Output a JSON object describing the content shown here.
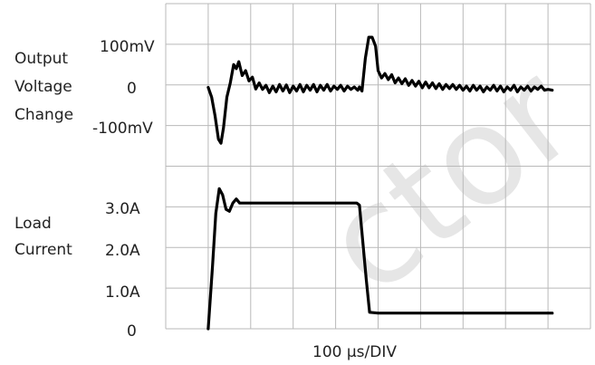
{
  "chart_data": {
    "type": "line",
    "time_division": "100 µs/DIV",
    "watermark": "ctor",
    "panels": [
      {
        "name": "Output Voltage Change",
        "label_lines": [
          "Output",
          "Voltage",
          "Change"
        ],
        "tick_labels": [
          "100mV",
          "0",
          "-100mV"
        ],
        "tick_values": [
          100,
          0,
          -100
        ],
        "unit": "mV",
        "points": [
          [
            1.0,
            -1
          ],
          [
            1.08,
            -25
          ],
          [
            1.16,
            -70
          ],
          [
            1.24,
            -128
          ],
          [
            1.3,
            -138
          ],
          [
            1.36,
            -100
          ],
          [
            1.44,
            -25
          ],
          [
            1.52,
            10
          ],
          [
            1.6,
            55
          ],
          [
            1.66,
            45
          ],
          [
            1.72,
            62
          ],
          [
            1.8,
            28
          ],
          [
            1.88,
            40
          ],
          [
            1.96,
            15
          ],
          [
            2.04,
            24
          ],
          [
            2.12,
            -5
          ],
          [
            2.2,
            10
          ],
          [
            2.28,
            -6
          ],
          [
            2.36,
            4
          ],
          [
            2.44,
            -14
          ],
          [
            2.52,
            2
          ],
          [
            2.6,
            -12
          ],
          [
            2.68,
            6
          ],
          [
            2.76,
            -10
          ],
          [
            2.84,
            5
          ],
          [
            2.92,
            -14
          ],
          [
            3.0,
            2
          ],
          [
            3.08,
            -10
          ],
          [
            3.16,
            6
          ],
          [
            3.24,
            -12
          ],
          [
            3.32,
            4
          ],
          [
            3.4,
            -8
          ],
          [
            3.48,
            6
          ],
          [
            3.56,
            -12
          ],
          [
            3.64,
            4
          ],
          [
            3.72,
            -8
          ],
          [
            3.8,
            6
          ],
          [
            3.88,
            -10
          ],
          [
            3.96,
            2
          ],
          [
            4.04,
            -6
          ],
          [
            4.12,
            4
          ],
          [
            4.2,
            -10
          ],
          [
            4.28,
            2
          ],
          [
            4.36,
            -6
          ],
          [
            4.44,
            0
          ],
          [
            4.52,
            -8
          ],
          [
            4.56,
            0
          ],
          [
            4.62,
            -10
          ],
          [
            4.7,
            70
          ],
          [
            4.78,
            122
          ],
          [
            4.86,
            122
          ],
          [
            4.94,
            100
          ],
          [
            5.0,
            40
          ],
          [
            5.08,
            22
          ],
          [
            5.16,
            33
          ],
          [
            5.24,
            18
          ],
          [
            5.32,
            30
          ],
          [
            5.4,
            10
          ],
          [
            5.48,
            22
          ],
          [
            5.56,
            8
          ],
          [
            5.64,
            20
          ],
          [
            5.72,
            4
          ],
          [
            5.8,
            16
          ],
          [
            5.88,
            2
          ],
          [
            5.96,
            14
          ],
          [
            6.04,
            -2
          ],
          [
            6.12,
            12
          ],
          [
            6.2,
            -2
          ],
          [
            6.28,
            10
          ],
          [
            6.36,
            -4
          ],
          [
            6.44,
            8
          ],
          [
            6.52,
            -6
          ],
          [
            6.6,
            6
          ],
          [
            6.68,
            -4
          ],
          [
            6.76,
            6
          ],
          [
            6.84,
            -6
          ],
          [
            6.92,
            4
          ],
          [
            7.0,
            -8
          ],
          [
            7.08,
            2
          ],
          [
            7.16,
            -10
          ],
          [
            7.24,
            4
          ],
          [
            7.32,
            -8
          ],
          [
            7.4,
            2
          ],
          [
            7.48,
            -12
          ],
          [
            7.56,
            0
          ],
          [
            7.64,
            -8
          ],
          [
            7.72,
            4
          ],
          [
            7.8,
            -10
          ],
          [
            7.88,
            2
          ],
          [
            7.96,
            -12
          ],
          [
            8.04,
            0
          ],
          [
            8.12,
            -8
          ],
          [
            8.2,
            4
          ],
          [
            8.28,
            -12
          ],
          [
            8.36,
            0
          ],
          [
            8.44,
            -8
          ],
          [
            8.52,
            2
          ],
          [
            8.6,
            -10
          ],
          [
            8.68,
            0
          ],
          [
            8.76,
            -6
          ],
          [
            8.84,
            2
          ],
          [
            8.92,
            -8
          ],
          [
            9.0,
            -6
          ],
          [
            9.1,
            -8
          ]
        ]
      },
      {
        "name": "Load Current",
        "label_lines": [
          "Load",
          "Current"
        ],
        "tick_labels": [
          "3.0A",
          "2.0A",
          "1.0A",
          "0"
        ],
        "tick_values": [
          3.0,
          2.0,
          1.0,
          0
        ],
        "unit": "A",
        "points": [
          [
            1.0,
            0
          ],
          [
            1.1,
            1.5
          ],
          [
            1.18,
            2.8
          ],
          [
            1.26,
            3.4
          ],
          [
            1.34,
            3.25
          ],
          [
            1.42,
            2.9
          ],
          [
            1.5,
            2.85
          ],
          [
            1.58,
            3.05
          ],
          [
            1.66,
            3.15
          ],
          [
            1.74,
            3.05
          ],
          [
            1.84,
            3.05
          ],
          [
            4.5,
            3.05
          ],
          [
            4.56,
            3.0
          ],
          [
            4.72,
            1.2
          ],
          [
            4.8,
            0.4
          ],
          [
            5.0,
            0.38
          ],
          [
            9.1,
            0.38
          ]
        ]
      }
    ]
  }
}
